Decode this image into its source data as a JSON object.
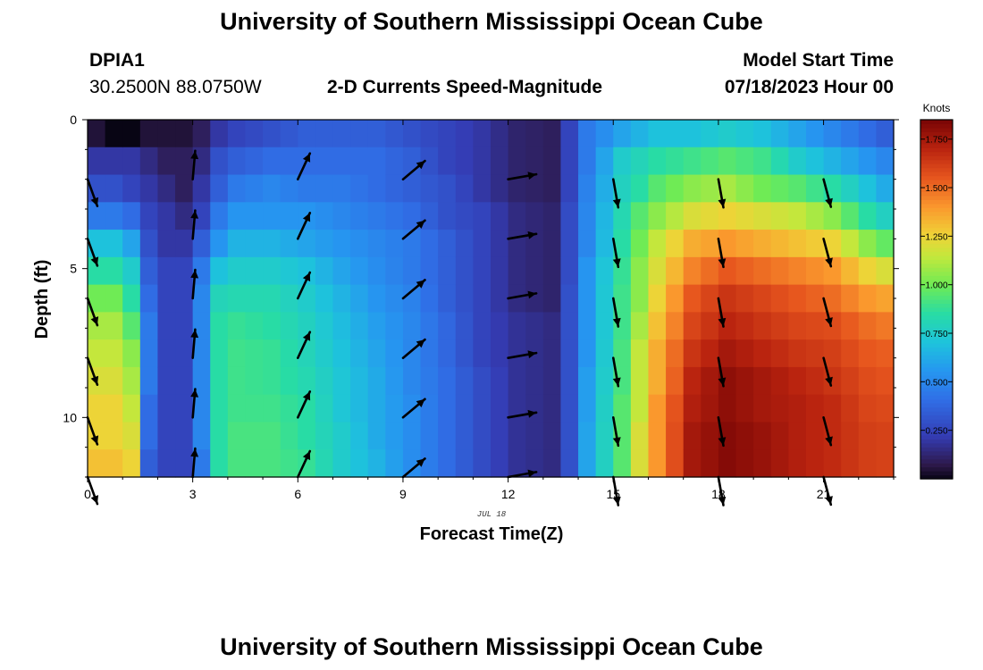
{
  "page": {
    "title": "University of Southern Mississippi Ocean Cube",
    "station_id": "DPIA1",
    "coords": "30.2500N  88.0750W",
    "subtitle": "2-D Currents Speed-Magnitude",
    "model_start_label": "Model Start Time",
    "model_start_value": "07/18/2023 Hour 00",
    "bottom_title": "University of Southern Mississippi Ocean Cube"
  },
  "chart_data": {
    "type": "heatmap",
    "title": "2-D Currents Speed-Magnitude",
    "xlabel": "Forecast Time(Z)",
    "ylabel": "Depth (ft)",
    "date_label": "JUL 18",
    "x_ticks": [
      0,
      3,
      6,
      9,
      12,
      15,
      18,
      21
    ],
    "y_ticks": [
      0,
      5,
      10
    ],
    "xlim": [
      0,
      23
    ],
    "ylim": [
      0,
      12
    ],
    "y_reversed": true,
    "colorbar": {
      "label": "Knots",
      "min": 0,
      "max": 1.85,
      "ticks": [
        0.25,
        0.5,
        0.75,
        1.0,
        1.25,
        1.5,
        1.75
      ],
      "tick_labels": [
        "0.250",
        "0.500",
        "0.750",
        "1.000",
        "1.250",
        "1.500",
        "1.750"
      ]
    },
    "grid_x_hours": [
      0,
      0.5,
      1,
      1.5,
      2,
      2.5,
      3,
      3.5,
      4,
      4.5,
      5,
      5.5,
      6,
      6.5,
      7,
      7.5,
      8,
      8.5,
      9,
      9.5,
      10,
      10.5,
      11,
      11.5,
      12,
      12.5,
      13,
      13.5,
      14,
      14.5,
      15,
      15.5,
      16,
      16.5,
      17,
      17.5,
      18,
      18.5,
      19,
      19.5,
      20,
      20.5,
      21,
      21.5,
      22,
      22.5
    ],
    "depth_rows_ft": [
      0.25,
      1,
      2,
      3,
      4,
      5,
      6,
      7,
      8,
      9,
      10,
      11,
      12
    ],
    "speed_keyframes_knots": [
      {
        "hour": 0,
        "values": [
          0.05,
          0.2,
          0.3,
          0.45,
          0.7,
          0.85,
          1.0,
          1.1,
          1.15,
          1.2,
          1.25,
          1.25,
          1.3
        ]
      },
      {
        "hour": 0.5,
        "values": [
          0.0,
          0.2,
          0.3,
          0.45,
          0.7,
          0.85,
          1.0,
          1.1,
          1.15,
          1.2,
          1.25,
          1.25,
          1.3
        ]
      },
      {
        "hour": 1,
        "values": [
          0.0,
          0.2,
          0.25,
          0.4,
          0.6,
          0.75,
          0.85,
          0.95,
          1.05,
          1.1,
          1.15,
          1.2,
          1.25
        ]
      },
      {
        "hour": 1.5,
        "values": [
          0.05,
          0.15,
          0.2,
          0.25,
          0.3,
          0.35,
          0.4,
          0.45,
          0.45,
          0.45,
          0.4,
          0.4,
          0.35
        ]
      },
      {
        "hour": 2,
        "values": [
          0.05,
          0.1,
          0.15,
          0.2,
          0.2,
          0.25,
          0.25,
          0.25,
          0.25,
          0.25,
          0.25,
          0.25,
          0.25
        ]
      },
      {
        "hour": 2.5,
        "values": [
          0.05,
          0.1,
          0.1,
          0.15,
          0.2,
          0.25,
          0.25,
          0.25,
          0.25,
          0.25,
          0.25,
          0.25,
          0.25
        ]
      },
      {
        "hour": 3,
        "values": [
          0.1,
          0.15,
          0.2,
          0.25,
          0.35,
          0.45,
          0.5,
          0.5,
          0.5,
          0.5,
          0.5,
          0.5,
          0.45
        ]
      },
      {
        "hour": 3.5,
        "values": [
          0.2,
          0.3,
          0.35,
          0.45,
          0.55,
          0.7,
          0.8,
          0.85,
          0.85,
          0.85,
          0.85,
          0.85,
          0.85
        ]
      },
      {
        "hour": 4,
        "values": [
          0.25,
          0.35,
          0.45,
          0.55,
          0.65,
          0.75,
          0.82,
          0.88,
          0.9,
          0.9,
          0.9,
          0.92,
          0.92
        ]
      },
      {
        "hour": 5,
        "values": [
          0.3,
          0.4,
          0.5,
          0.55,
          0.65,
          0.75,
          0.82,
          0.85,
          0.88,
          0.88,
          0.9,
          0.92,
          0.92
        ]
      },
      {
        "hour": 6,
        "values": [
          0.35,
          0.4,
          0.45,
          0.55,
          0.6,
          0.7,
          0.75,
          0.78,
          0.8,
          0.82,
          0.85,
          0.85,
          0.88
        ]
      },
      {
        "hour": 7,
        "values": [
          0.35,
          0.4,
          0.45,
          0.5,
          0.55,
          0.6,
          0.65,
          0.68,
          0.7,
          0.72,
          0.72,
          0.75,
          0.75
        ]
      },
      {
        "hour": 8,
        "values": [
          0.35,
          0.4,
          0.4,
          0.45,
          0.5,
          0.52,
          0.55,
          0.58,
          0.6,
          0.62,
          0.62,
          0.62,
          0.65
        ]
      },
      {
        "hour": 9,
        "values": [
          0.3,
          0.35,
          0.35,
          0.4,
          0.45,
          0.45,
          0.48,
          0.5,
          0.5,
          0.5,
          0.52,
          0.52,
          0.52
        ]
      },
      {
        "hour": 10,
        "values": [
          0.25,
          0.25,
          0.3,
          0.3,
          0.35,
          0.35,
          0.35,
          0.38,
          0.38,
          0.4,
          0.4,
          0.4,
          0.4
        ]
      },
      {
        "hour": 11,
        "values": [
          0.2,
          0.2,
          0.2,
          0.25,
          0.25,
          0.25,
          0.25,
          0.25,
          0.25,
          0.28,
          0.28,
          0.28,
          0.28
        ]
      },
      {
        "hour": 12,
        "values": [
          0.12,
          0.12,
          0.12,
          0.15,
          0.15,
          0.15,
          0.15,
          0.18,
          0.18,
          0.18,
          0.18,
          0.18,
          0.18
        ]
      },
      {
        "hour": 13,
        "values": [
          0.1,
          0.1,
          0.1,
          0.12,
          0.12,
          0.12,
          0.12,
          0.15,
          0.15,
          0.15,
          0.15,
          0.15,
          0.15
        ]
      },
      {
        "hour": 13.5,
        "values": [
          0.25,
          0.25,
          0.25,
          0.28,
          0.28,
          0.28,
          0.3,
          0.3,
          0.3,
          0.3,
          0.3,
          0.3,
          0.3
        ]
      },
      {
        "hour": 14,
        "values": [
          0.45,
          0.45,
          0.48,
          0.5,
          0.5,
          0.55,
          0.55,
          0.55,
          0.55,
          0.58,
          0.58,
          0.6,
          0.6
        ]
      },
      {
        "hour": 15,
        "values": [
          0.6,
          0.75,
          0.78,
          0.82,
          0.85,
          0.88,
          0.9,
          0.9,
          0.92,
          0.92,
          0.95,
          0.95,
          0.95
        ]
      },
      {
        "hour": 15.5,
        "values": [
          0.65,
          0.8,
          0.85,
          0.95,
          1.0,
          1.05,
          1.05,
          1.1,
          1.15,
          1.15,
          1.15,
          1.2,
          1.2
        ]
      },
      {
        "hour": 16,
        "values": [
          0.7,
          0.85,
          0.95,
          1.05,
          1.15,
          1.2,
          1.25,
          1.3,
          1.35,
          1.35,
          1.4,
          1.4,
          1.4
        ]
      },
      {
        "hour": 17,
        "values": [
          0.7,
          0.9,
          1.05,
          1.2,
          1.35,
          1.45,
          1.55,
          1.6,
          1.65,
          1.7,
          1.72,
          1.75,
          1.75
        ]
      },
      {
        "hour": 18,
        "values": [
          0.75,
          0.95,
          1.1,
          1.25,
          1.4,
          1.55,
          1.65,
          1.7,
          1.75,
          1.8,
          1.8,
          1.82,
          1.82
        ]
      },
      {
        "hour": 19,
        "values": [
          0.7,
          0.9,
          1.0,
          1.2,
          1.35,
          1.5,
          1.6,
          1.65,
          1.7,
          1.75,
          1.75,
          1.78,
          1.78
        ]
      },
      {
        "hour": 20,
        "values": [
          0.6,
          0.75,
          0.95,
          1.15,
          1.3,
          1.45,
          1.55,
          1.6,
          1.65,
          1.7,
          1.72,
          1.72,
          1.72
        ]
      },
      {
        "hour": 21,
        "values": [
          0.5,
          0.65,
          0.85,
          1.05,
          1.25,
          1.4,
          1.5,
          1.58,
          1.62,
          1.65,
          1.68,
          1.68,
          1.68
        ]
      },
      {
        "hour": 22,
        "values": [
          0.4,
          0.55,
          0.7,
          0.85,
          1.05,
          1.25,
          1.4,
          1.5,
          1.55,
          1.58,
          1.6,
          1.62,
          1.62
        ]
      },
      {
        "hour": 23,
        "values": [
          0.3,
          0.45,
          0.55,
          0.7,
          0.9,
          1.15,
          1.35,
          1.45,
          1.52,
          1.55,
          1.58,
          1.6,
          1.6
        ]
      }
    ],
    "vectors": {
      "hours": [
        0,
        3,
        6,
        9,
        12,
        15,
        18,
        21
      ],
      "depths_ft": [
        2,
        4,
        6,
        8,
        10,
        12
      ],
      "direction_deg_to": [
        160,
        5,
        25,
        50,
        80,
        170,
        170,
        165
      ]
    }
  }
}
